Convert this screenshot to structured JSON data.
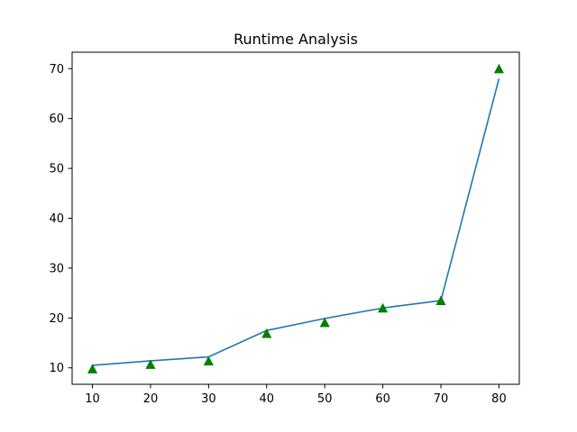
{
  "chart_data": {
    "type": "line",
    "title": "Runtime Analysis",
    "xlabel": "",
    "ylabel": "",
    "x": [
      10,
      20,
      30,
      40,
      50,
      60,
      70,
      80
    ],
    "xlim": [
      6.5,
      83.5
    ],
    "ylim": [
      6.7,
      73.3
    ],
    "xticks": [
      10,
      20,
      30,
      40,
      50,
      60,
      70,
      80
    ],
    "yticks": [
      10,
      20,
      30,
      40,
      50,
      60,
      70
    ],
    "grid": false,
    "series": [
      {
        "style": "line",
        "color": "#1f77b4",
        "values": [
          10.5,
          11.4,
          12.2,
          17.5,
          19.9,
          22.0,
          23.5,
          68.0
        ]
      },
      {
        "style": "markers",
        "marker": "triangle-up",
        "color": "#008000",
        "values": [
          9.7,
          10.6,
          11.3,
          16.8,
          19.0,
          21.9,
          23.4,
          69.9
        ]
      }
    ]
  }
}
